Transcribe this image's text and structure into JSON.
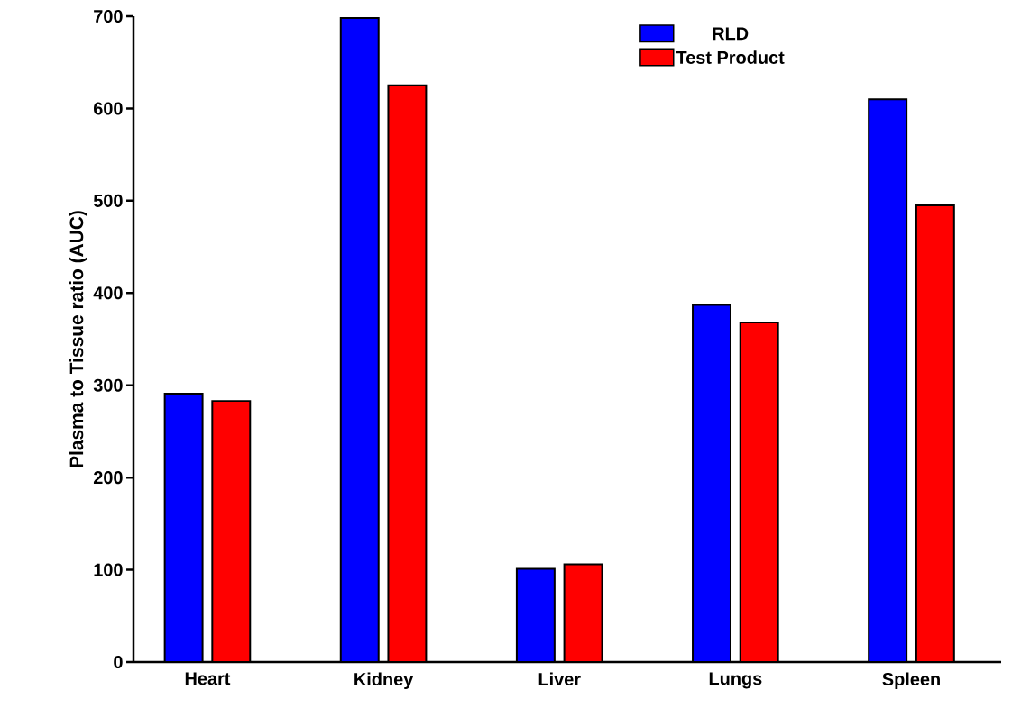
{
  "chart_data": {
    "type": "bar",
    "ylabel": "Plasma to Tissue ratio (AUC)",
    "categories": [
      "Heart",
      "Kidney",
      "Liver",
      "Lungs",
      "Spleen"
    ],
    "series": [
      {
        "name": "RLD",
        "color": "#0000ff",
        "values": [
          291,
          698,
          101,
          387,
          610
        ]
      },
      {
        "name": "Test Product",
        "color": "#ff0000",
        "values": [
          283,
          625,
          106,
          368,
          495
        ]
      }
    ],
    "ylim": [
      0,
      700
    ],
    "yticks": [
      0,
      100,
      200,
      300,
      400,
      500,
      600,
      700
    ],
    "legend": "top right",
    "grid": false
  }
}
